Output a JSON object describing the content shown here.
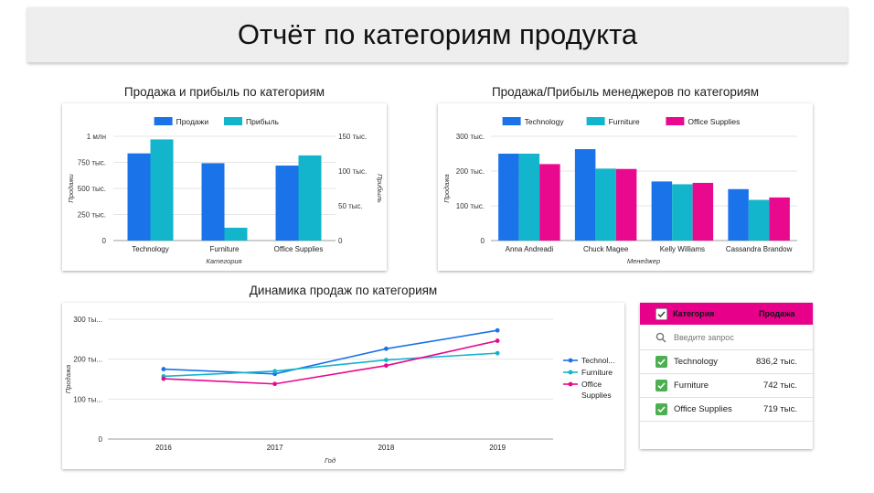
{
  "report": {
    "title": "Отчёт по категориям продукта"
  },
  "chart_data": [
    {
      "type": "bar",
      "title": "Продажа и прибыль по категориям",
      "xlabel": "Категория",
      "ylabel": "Продажи",
      "y2label": "Прибыль",
      "categories": [
        "Technology",
        "Furniture",
        "Office Supplies"
      ],
      "series": [
        {
          "name": "Продажи",
          "values": [
            836154,
            742000,
            719047
          ],
          "color": "#1a73e8",
          "axis": "left"
        },
        {
          "name": "Прибыль",
          "values": [
            145455,
            18451,
            122491
          ],
          "color": "#12b5cb",
          "axis": "right"
        }
      ],
      "ylim": [
        0,
        1000000
      ],
      "y2lim": [
        0,
        150000
      ],
      "yticks": [
        {
          "v": 0,
          "label": "0"
        },
        {
          "v": 250000,
          "label": "250 тыс."
        },
        {
          "v": 500000,
          "label": "500 тыс."
        },
        {
          "v": 750000,
          "label": "750 тыс."
        },
        {
          "v": 1000000,
          "label": "1 млн"
        }
      ],
      "y2ticks": [
        {
          "v": 0,
          "label": "0"
        },
        {
          "v": 50000,
          "label": "50 тыс."
        },
        {
          "v": 100000,
          "label": "100 тыс."
        },
        {
          "v": 150000,
          "label": "150 тыс."
        }
      ],
      "legend": "top",
      "grid": true
    },
    {
      "type": "bar",
      "title": "Продажа/Прибыль менеджеров по категориям",
      "xlabel": "Менеджер",
      "ylabel": "Продажа",
      "categories": [
        "Anna Andreadi",
        "Chuck Magee",
        "Kelly Williams",
        "Cassandra Brandow"
      ],
      "series": [
        {
          "name": "Technology",
          "values": [
            250000,
            263000,
            170000,
            148000
          ],
          "color": "#1a73e8"
        },
        {
          "name": "Furniture",
          "values": [
            250000,
            207000,
            162000,
            117000
          ],
          "color": "#12b5cb"
        },
        {
          "name": "Office Supplies",
          "values": [
            220000,
            206000,
            166000,
            124000
          ],
          "color": "#e8098f"
        }
      ],
      "ylim": [
        0,
        300000
      ],
      "yticks": [
        {
          "v": 0,
          "label": "0"
        },
        {
          "v": 100000,
          "label": "100 тыс."
        },
        {
          "v": 200000,
          "label": "200 тыс."
        },
        {
          "v": 300000,
          "label": "300 тыс."
        }
      ],
      "legend": "top",
      "grid": true
    },
    {
      "type": "line",
      "title": "Динамика продаж по категориям",
      "xlabel": "Год",
      "ylabel": "Продажа",
      "x": [
        "2016",
        "2017",
        "2018",
        "2019"
      ],
      "series": [
        {
          "name": "Technology",
          "legend_label": [
            "Technol..."
          ],
          "values": [
            175000,
            163000,
            226000,
            272000
          ],
          "color": "#1a73e8"
        },
        {
          "name": "Furniture",
          "legend_label": [
            "Furniture"
          ],
          "values": [
            157000,
            170000,
            198000,
            215000
          ],
          "color": "#12b5cb"
        },
        {
          "name": "Office Supplies",
          "legend_label": [
            "Office",
            "Supplies"
          ],
          "values": [
            151000,
            138000,
            184000,
            246000
          ],
          "color": "#e8098f"
        }
      ],
      "ylim": [
        0,
        300000
      ],
      "yticks": [
        {
          "v": 0,
          "label": "0"
        },
        {
          "v": 100000,
          "label": "100 ты..."
        },
        {
          "v": 200000,
          "label": "200 ты..."
        },
        {
          "v": 300000,
          "label": "300 ты..."
        }
      ],
      "legend": "right",
      "grid": true
    }
  ],
  "table": {
    "header": {
      "col1": "Категория",
      "col2": "Продажа"
    },
    "search": {
      "placeholder": "Введите запрос"
    },
    "rows": [
      {
        "name": "Technology",
        "value": "836,2 тыс."
      },
      {
        "name": "Furniture",
        "value": "742 тыс."
      },
      {
        "name": "Office Supplies",
        "value": "719 тыс."
      }
    ]
  }
}
